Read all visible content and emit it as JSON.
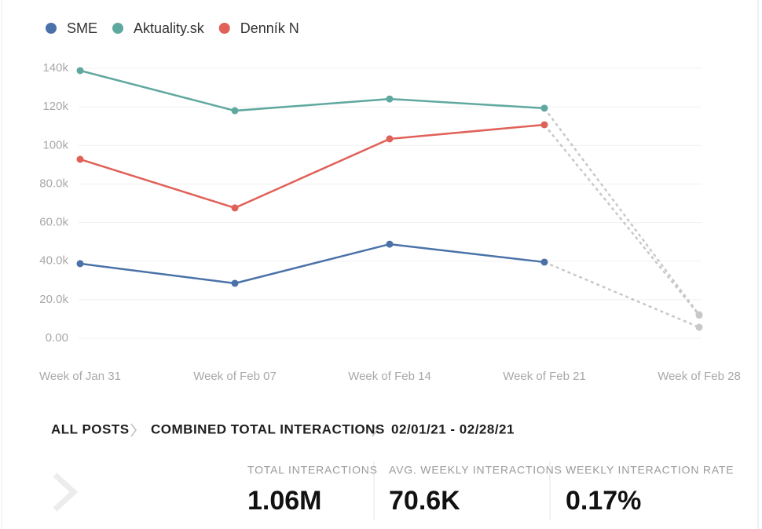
{
  "chart_data": {
    "type": "line",
    "categories": [
      "Week of Jan 31",
      "Week of Feb 07",
      "Week of Feb 14",
      "Week of Feb 21",
      "Week of Feb 28"
    ],
    "series": [
      {
        "name": "SME",
        "color": "#4a72a8",
        "values": [
          38700,
          28500,
          48800,
          39500,
          5700
        ]
      },
      {
        "name": "Aktuality.sk",
        "color": "#5fa8a0",
        "values": [
          138800,
          118000,
          124100,
          119300,
          12200
        ]
      },
      {
        "name": "Denník N",
        "color": "#e06158",
        "values": [
          92800,
          67600,
          103400,
          110700,
          12000
        ]
      }
    ],
    "ylim": [
      0,
      140000
    ],
    "yticks": [
      {
        "value": 0,
        "label": "0.00"
      },
      {
        "value": 20000,
        "label": "20.0k"
      },
      {
        "value": 40000,
        "label": "40.0k"
      },
      {
        "value": 60000,
        "label": "60.0k"
      },
      {
        "value": 80000,
        "label": "80.0k"
      },
      {
        "value": 100000,
        "label": "100k"
      },
      {
        "value": 120000,
        "label": "120k"
      },
      {
        "value": 140000,
        "label": "140k"
      }
    ],
    "grid": true,
    "legend": "top-left",
    "dashed_last_segment": true,
    "dashed_color": "#c8c8c8"
  },
  "breadcrumbs": [
    "ALL POSTS",
    "COMBINED TOTAL INTERACTIONS",
    "02/01/21 - 02/28/21"
  ],
  "stats": [
    {
      "label": "TOTAL INTERACTIONS",
      "value": "1.06M"
    },
    {
      "label": "AVG. WEEKLY INTERACTIONS",
      "value": "70.6K"
    },
    {
      "label": "WEEKLY INTERACTION RATE",
      "value": "0.17%"
    }
  ]
}
